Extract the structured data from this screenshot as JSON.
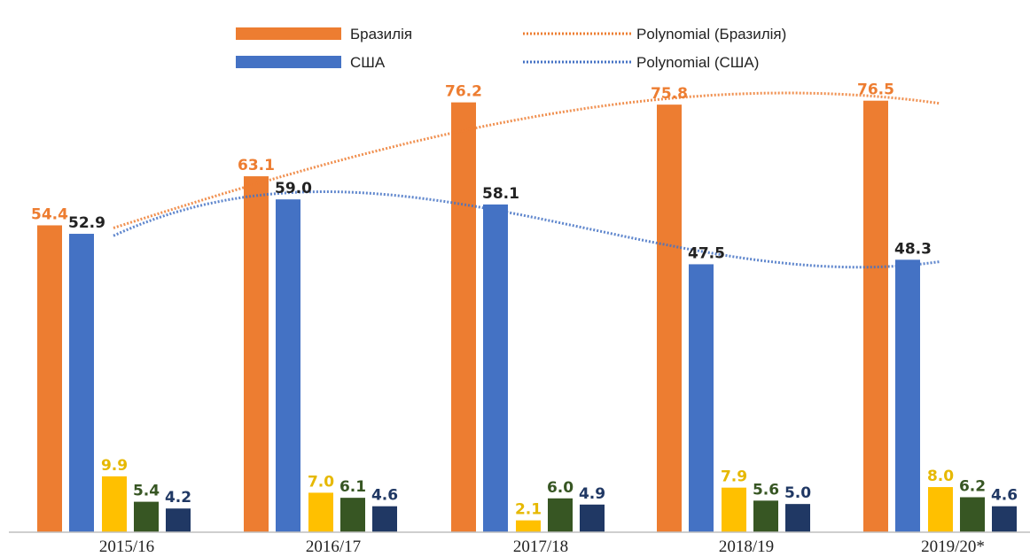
{
  "chart_data": {
    "type": "bar",
    "title": "",
    "xlabel": "",
    "ylabel": "",
    "ylim": [
      0,
      90
    ],
    "grid": false,
    "legend_position": "top",
    "categories": [
      "2015/16",
      "2016/17",
      "2017/18",
      "2018/19",
      "2019/20*"
    ],
    "series": [
      {
        "name": "Бразилія",
        "color": "#ED7D31",
        "values": [
          54.4,
          63.1,
          76.2,
          75.8,
          76.5
        ]
      },
      {
        "name": "США",
        "color": "#4472C4",
        "values": [
          52.9,
          59.0,
          58.1,
          47.5,
          48.3
        ]
      },
      {
        "color": "#FFC000",
        "values": [
          9.9,
          7.0,
          2.1,
          7.9,
          8.0
        ]
      },
      {
        "color": "#375623",
        "values": [
          5.4,
          6.1,
          6.0,
          5.6,
          6.2
        ]
      },
      {
        "color": "#203864",
        "values": [
          4.2,
          4.6,
          4.9,
          5.0,
          4.6
        ]
      }
    ],
    "trendlines": [
      {
        "name": "Polynomial (Бразилія)",
        "color": "#ED7D31",
        "series": 0
      },
      {
        "name": "Polynomial (США)",
        "color": "#4472C4",
        "series": 1
      }
    ]
  }
}
